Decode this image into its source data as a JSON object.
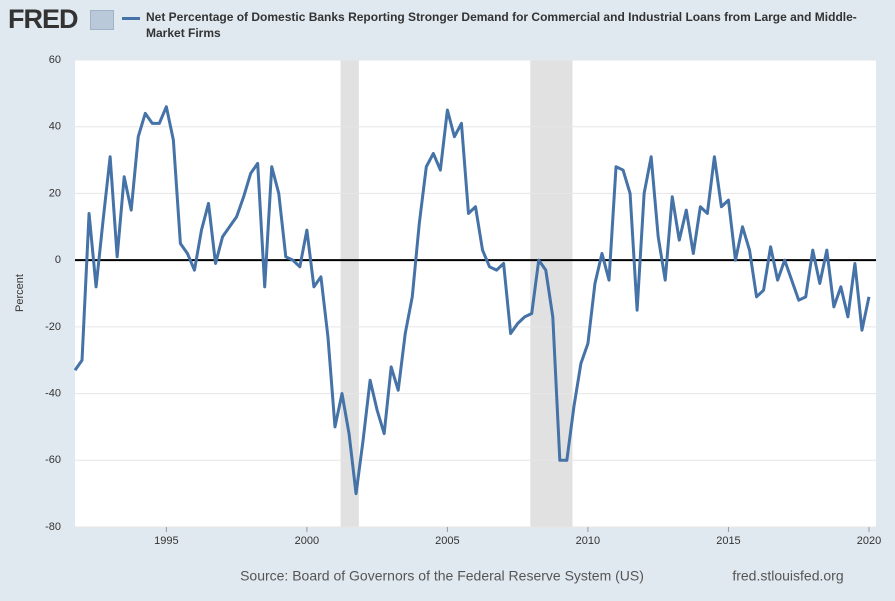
{
  "chart_data": {
    "type": "line",
    "logo": "FRED",
    "title": "Net Percentage of Domestic Banks Reporting Stronger Demand for Commercial and Industrial Loans from Large and Middle-Market Firms",
    "y_label": "Percent",
    "source": "Source: Board of Governors of the Federal Reserve System (US)",
    "url": "fred.stlouisfed.org",
    "xlim": [
      1991.75,
      2020.25
    ],
    "xticks": [
      1995,
      2000,
      2005,
      2010,
      2015,
      2020
    ],
    "ylim": [
      -80,
      60
    ],
    "yticks": [
      -80,
      -60,
      -40,
      -20,
      0,
      20,
      40,
      60
    ],
    "grid": true,
    "shaded_periods": [
      [
        2001.2,
        2001.85
      ],
      [
        2007.95,
        2009.45
      ]
    ],
    "x": [
      1991.75,
      1992,
      1992.25,
      1992.5,
      1992.75,
      1993,
      1993.25,
      1993.5,
      1993.75,
      1994,
      1994.25,
      1994.5,
      1994.75,
      1995,
      1995.25,
      1995.5,
      1995.75,
      1996,
      1996.25,
      1996.5,
      1996.75,
      1997,
      1997.25,
      1997.5,
      1997.75,
      1998,
      1998.25,
      1998.5,
      1998.75,
      1999,
      1999.25,
      1999.5,
      1999.75,
      2000,
      2000.25,
      2000.5,
      2000.75,
      2001,
      2001.25,
      2001.5,
      2001.75,
      2002,
      2002.25,
      2002.5,
      2002.75,
      2003,
      2003.25,
      2003.5,
      2003.75,
      2004,
      2004.25,
      2004.5,
      2004.75,
      2005,
      2005.25,
      2005.5,
      2005.75,
      2006,
      2006.25,
      2006.5,
      2006.75,
      2007,
      2007.25,
      2007.5,
      2007.75,
      2008,
      2008.25,
      2008.5,
      2008.75,
      2009,
      2009.25,
      2009.5,
      2009.75,
      2010,
      2010.25,
      2010.5,
      2010.75,
      2011,
      2011.25,
      2011.5,
      2011.75,
      2012,
      2012.25,
      2012.5,
      2012.75,
      2013,
      2013.25,
      2013.5,
      2013.75,
      2014,
      2014.25,
      2014.5,
      2014.75,
      2015,
      2015.25,
      2015.5,
      2015.75,
      2016,
      2016.25,
      2016.5,
      2016.75,
      2017,
      2017.25,
      2017.5,
      2017.75,
      2018,
      2018.25,
      2018.5,
      2018.75,
      2019,
      2019.25,
      2019.5,
      2019.75,
      2020
    ],
    "series": [
      {
        "color": "#4572a7",
        "values": [
          -33,
          -30,
          14,
          -8,
          12,
          31,
          1,
          25,
          15,
          37,
          44,
          41,
          41,
          46,
          36,
          5,
          2,
          -3,
          9,
          17,
          -1,
          7,
          10,
          13,
          19,
          26,
          29,
          -8,
          28,
          20,
          1,
          0,
          -2,
          9,
          -8,
          -5,
          -23,
          -50,
          -40,
          -52,
          -70,
          -54,
          -36,
          -45,
          -52,
          -32,
          -39,
          -22,
          -11,
          11,
          28,
          32,
          27,
          45,
          37,
          41,
          14,
          16,
          3,
          -2,
          -3,
          -1,
          -22,
          -19,
          -17,
          -16,
          0,
          -3,
          -17,
          -60,
          -60,
          -44,
          -31,
          -25,
          -7,
          2,
          -6,
          28,
          27,
          20,
          -15,
          20,
          31,
          7,
          -6,
          19,
          6,
          15,
          2,
          16,
          14,
          31,
          16,
          18,
          0,
          10,
          3,
          -11,
          -9,
          4,
          -6,
          0,
          -6,
          -12,
          -11,
          3,
          -7,
          3,
          -14,
          -8,
          -17,
          -1,
          -21,
          -11
        ]
      }
    ]
  }
}
